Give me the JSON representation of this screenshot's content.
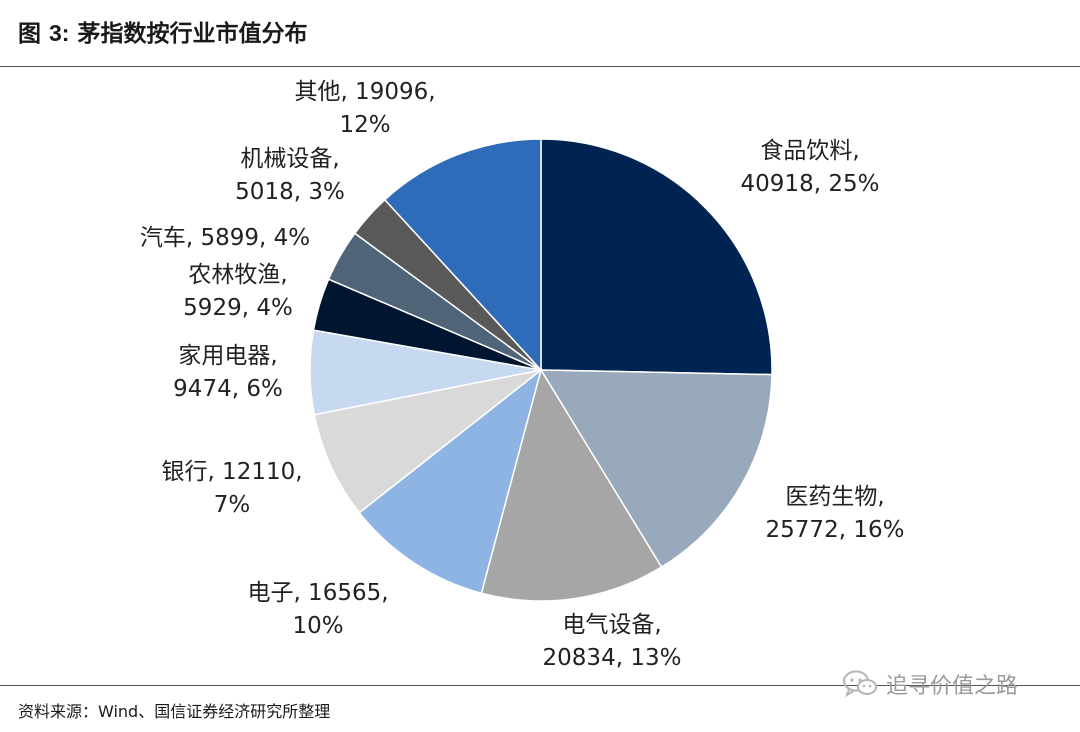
{
  "header": {
    "fig_prefix": "图",
    "fig_num": "3:",
    "title": "茅指数按行业市值分布"
  },
  "footer": {
    "source": "资料来源：Wind、国信证券经济研究所整理"
  },
  "watermark": {
    "text": "追寻价值之路",
    "icon": "wechat-icon"
  },
  "chart_data": {
    "type": "pie",
    "start_angle_deg": 0,
    "direction": "clockwise",
    "slices": [
      {
        "name": "食品饮料",
        "value": 40918,
        "pct": "25%",
        "label_lines": [
          "食品饮料,",
          "40918, 25%"
        ],
        "color": "#002452"
      },
      {
        "name": "医药生物",
        "value": 25772,
        "pct": "16%",
        "label_lines": [
          "医药生物,",
          "25772, 16%"
        ],
        "color": "#97a9bb"
      },
      {
        "name": "电气设备",
        "value": 20834,
        "pct": "13%",
        "label_lines": [
          "电气设备,",
          "20834, 13%"
        ],
        "color": "#a6a6a6"
      },
      {
        "name": "电子",
        "value": 16565,
        "pct": "10%",
        "label_lines": [
          "电子, 16565,",
          "10%"
        ],
        "color": "#8db4e3"
      },
      {
        "name": "银行",
        "value": 12110,
        "pct": "7%",
        "label_lines": [
          "银行, 12110,",
          "7%"
        ],
        "color": "#d9d9d9"
      },
      {
        "name": "家用电器",
        "value": 9474,
        "pct": "6%",
        "label_lines": [
          "家用电器,",
          "9474, 6%"
        ],
        "color": "#c6d9f1"
      },
      {
        "name": "农林牧渔",
        "value": 5929,
        "pct": "4%",
        "label_lines": [
          "农林牧渔,",
          "5929, 4%"
        ],
        "color": "#00152f"
      },
      {
        "name": "汽车",
        "value": 5899,
        "pct": "4%",
        "label_lines": [
          "汽车, 5899, 4%"
        ],
        "color": "#4f6478"
      },
      {
        "name": "机械设备",
        "value": 5018,
        "pct": "3%",
        "label_lines": [
          "机械设备,",
          "5018, 3%"
        ],
        "color": "#595959"
      },
      {
        "name": "其他",
        "value": 19096,
        "pct": "12%",
        "label_lines": [
          "其他, 19096,",
          "12%"
        ],
        "color": "#2e6bb8"
      }
    ]
  }
}
